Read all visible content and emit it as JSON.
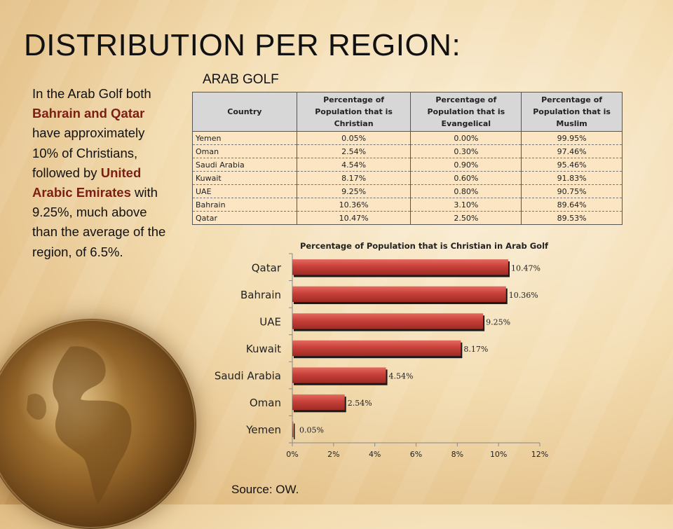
{
  "slide": {
    "title": "DISTRIBUTION PER REGION:",
    "subtitle": "ARAB GOLF",
    "source": "Source: OW."
  },
  "description": {
    "part1": "In the Arab Golf both ",
    "highlight1": "Bahrain and Qatar",
    "part2": " have approximately 10% of Christians, followed by ",
    "highlight2": "United Arabic Emirates",
    "part3": " with 9.25%, much above than the average of the region, of 6.5%."
  },
  "table": {
    "headers": [
      "Country",
      "Percentage of Population that is Christian",
      "Percentage of Population that is Evangelical",
      "Percentage of Population that is Muslim"
    ],
    "rows": [
      [
        "Yemen",
        "0.05%",
        "0.00%",
        "99.95%"
      ],
      [
        "Oman",
        "2.54%",
        "0.30%",
        "97.46%"
      ],
      [
        "Saudi Arabia",
        "4.54%",
        "0.90%",
        "95.46%"
      ],
      [
        "Kuwait",
        "8.17%",
        "0.60%",
        "91.83%"
      ],
      [
        "UAE",
        "9.25%",
        "0.80%",
        "90.75%"
      ],
      [
        "Bahrain",
        "10.36%",
        "3.10%",
        "89.64%"
      ],
      [
        "Qatar",
        "10.47%",
        "2.50%",
        "89.53%"
      ]
    ]
  },
  "chart_data": {
    "type": "bar",
    "orientation": "horizontal",
    "title": "Percentage of Population that is Christian in Arab Golf",
    "categories": [
      "Qatar",
      "Bahrain",
      "UAE",
      "Kuwait",
      "Saudi Arabia",
      "Oman",
      "Yemen"
    ],
    "values": [
      10.47,
      10.36,
      9.25,
      8.17,
      4.54,
      2.54,
      0.05
    ],
    "value_labels": [
      "10.47%",
      "10.36%",
      "9.25%",
      "8.17%",
      "4.54%",
      "2.54%",
      "0.05%"
    ],
    "xlim": [
      0,
      12
    ],
    "xticks": [
      0,
      2,
      4,
      6,
      8,
      10,
      12
    ],
    "xtick_labels": [
      "0%",
      "2%",
      "4%",
      "6%",
      "8%",
      "10%",
      "12%"
    ],
    "bar_color": "#c8403a",
    "grid": false,
    "legend": "none"
  }
}
